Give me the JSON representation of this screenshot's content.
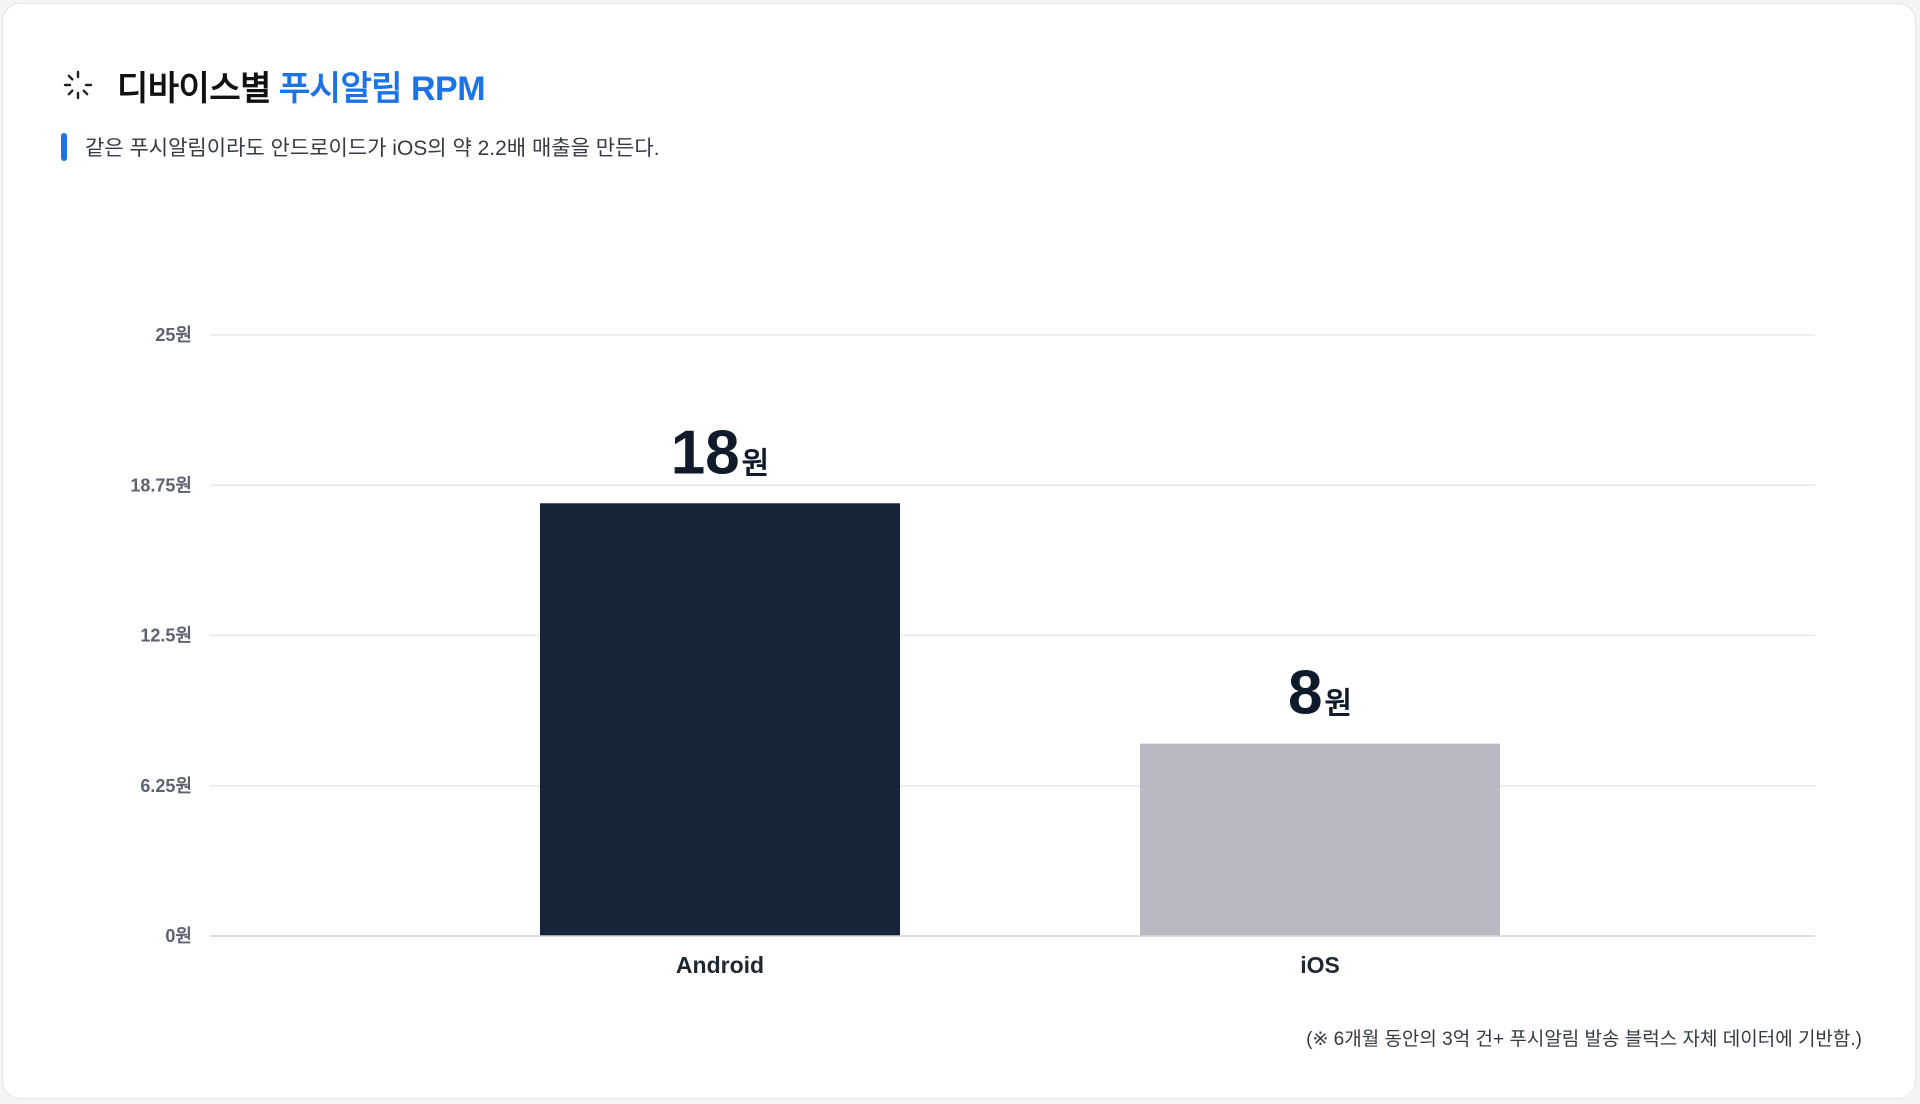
{
  "header": {
    "title_main": "디바이스별",
    "title_accent": "푸시알림 RPM",
    "icon": "loader-icon"
  },
  "subtitle": "같은 푸시알림이라도 안드로이드가 iOS의 약 2.2배 매출을 만든다.",
  "footnote": "(※ 6개월 동안의 3억 건+ 푸시알림 발송 블럭스 자체 데이터에 기반함.)",
  "colors": {
    "accent": "#1b73e8",
    "android": "#18243a",
    "ios": "#b8b9c2",
    "grid": "#e6e8ec"
  },
  "chart_data": {
    "type": "bar",
    "title": "디바이스별 푸시알림 RPM",
    "categories": [
      "Android",
      "iOS"
    ],
    "values": [
      18,
      8
    ],
    "value_labels": [
      "18",
      "8"
    ],
    "value_unit": "원",
    "ylim": [
      0,
      25
    ],
    "yticks": [
      "0원",
      "6.25원",
      "12.5원",
      "18.75원",
      "25원"
    ],
    "ytick_values": [
      0,
      6.25,
      12.5,
      18.75,
      25
    ],
    "grid": true,
    "legend": "none"
  }
}
